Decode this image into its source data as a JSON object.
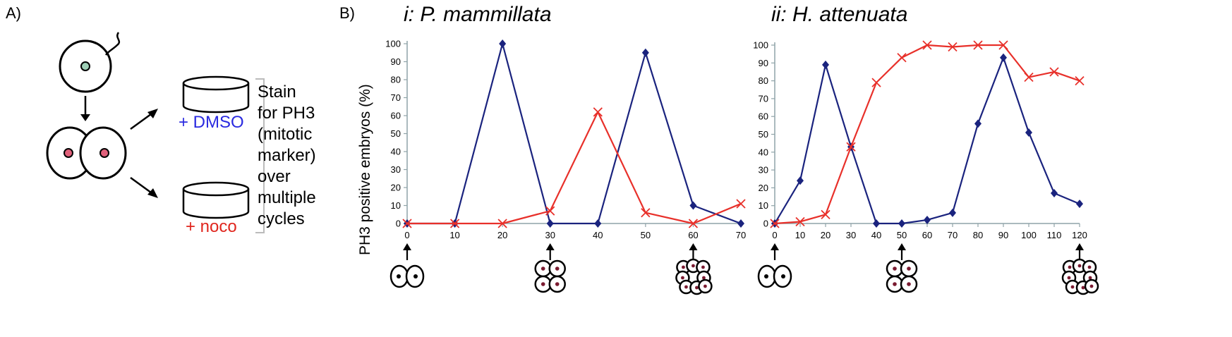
{
  "panel_a": {
    "label": "A)",
    "dmso_label": "+ DMSO",
    "noco_label": "+ noco",
    "stain_lines": [
      "Stain",
      "for PH3",
      "(mitotic",
      "marker)",
      "over",
      "multiple",
      "cycles"
    ]
  },
  "panel_b": {
    "label": "B)",
    "ylabel": "PH3 positive embryos (%)"
  },
  "colors": {
    "blue": "#1a237e",
    "red": "#e8302a",
    "axis": "#8fa3a8"
  },
  "chart_data": [
    {
      "type": "line",
      "title": "i: P. mammillata",
      "x": [
        0,
        10,
        20,
        30,
        40,
        50,
        60,
        70
      ],
      "ylim": [
        0,
        100
      ],
      "yticks": [
        0,
        10,
        20,
        30,
        40,
        50,
        60,
        70,
        80,
        90,
        100
      ],
      "series": [
        {
          "color": "#1a237e",
          "marker": "diamond",
          "values": [
            0,
            0,
            100,
            0,
            0,
            95,
            10,
            0
          ]
        },
        {
          "color": "#e8302a",
          "marker": "x",
          "values": [
            0,
            0,
            0,
            7,
            62,
            6,
            0,
            11
          ]
        }
      ],
      "stage_markers": [
        {
          "x": 0,
          "cells": 2
        },
        {
          "x": 30,
          "cells": 4
        },
        {
          "x": 60,
          "cells": 8
        }
      ]
    },
    {
      "type": "line",
      "title": "ii: H. attenuata",
      "x": [
        0,
        10,
        20,
        30,
        40,
        50,
        60,
        70,
        80,
        90,
        100,
        110,
        120
      ],
      "ylim": [
        0,
        100
      ],
      "yticks": [
        0,
        10,
        20,
        30,
        40,
        50,
        60,
        70,
        80,
        90,
        100
      ],
      "series": [
        {
          "color": "#1a237e",
          "marker": "diamond",
          "values": [
            0,
            24,
            89,
            43,
            0,
            0,
            2,
            6,
            56,
            93,
            51,
            17,
            11
          ]
        },
        {
          "color": "#e8302a",
          "marker": "x",
          "values": [
            0,
            1,
            5,
            43,
            79,
            93,
            100,
            99,
            100,
            100,
            82,
            85,
            80
          ]
        }
      ],
      "stage_markers": [
        {
          "x": 0,
          "cells": 2
        },
        {
          "x": 50,
          "cells": 4
        },
        {
          "x": 120,
          "cells": 8
        }
      ]
    }
  ]
}
